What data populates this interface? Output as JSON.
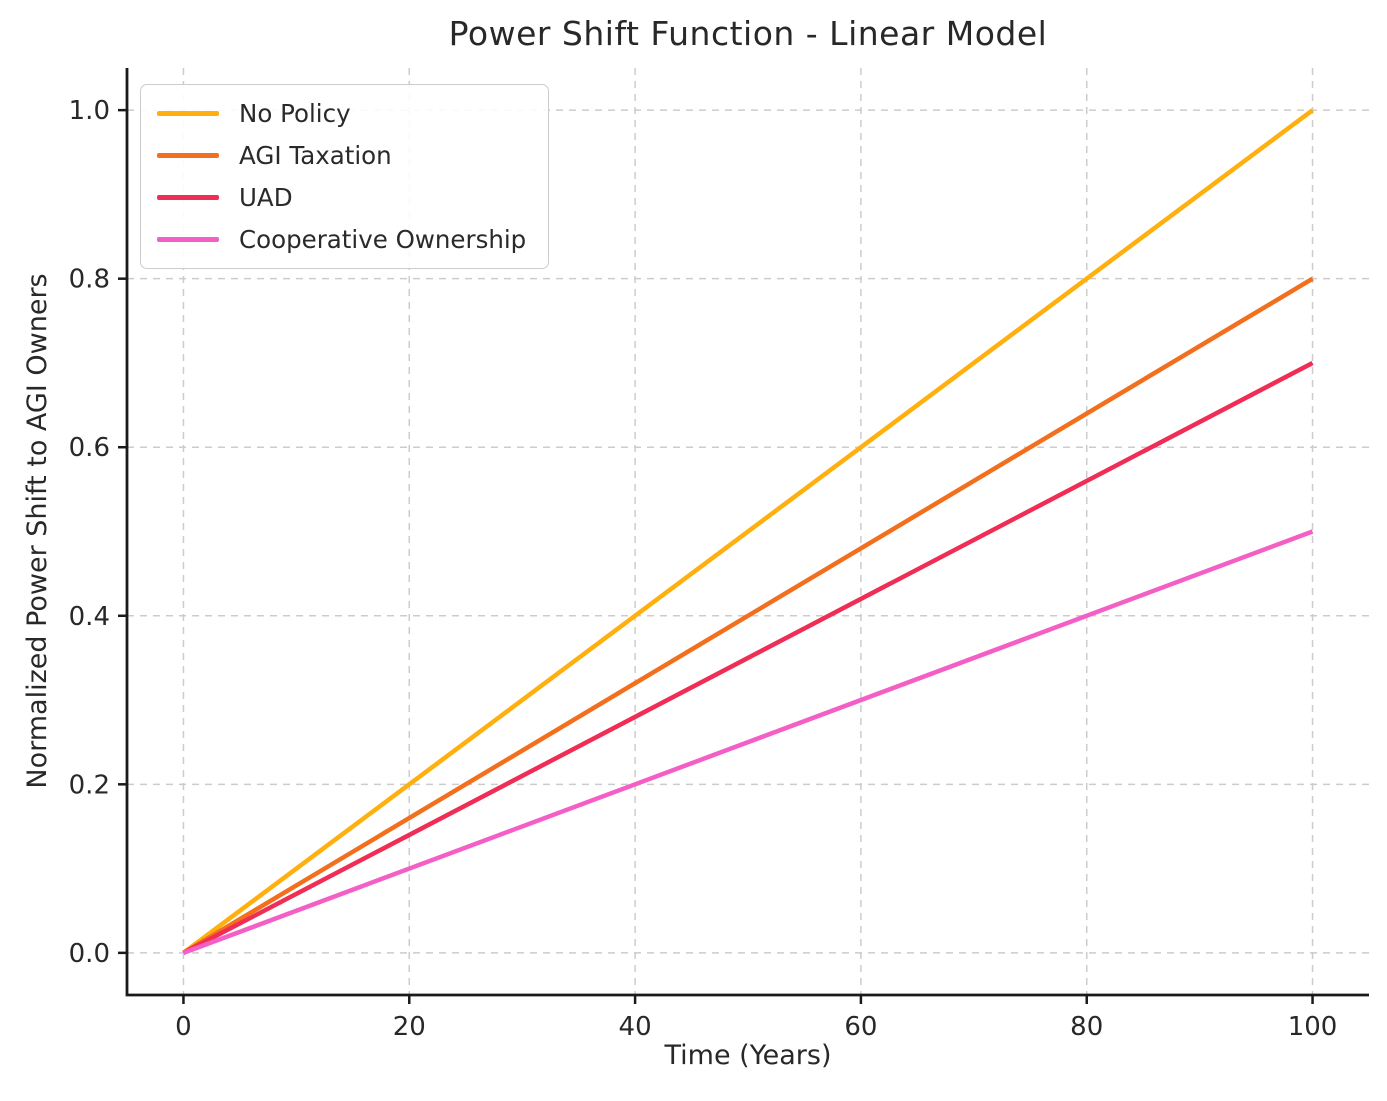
{
  "figure": {
    "title": "Power Shift Function - Linear Model",
    "xlabel": "Time (Years)",
    "ylabel": "Normalized Power Shift to AGI Owners"
  },
  "chart_data": {
    "type": "line",
    "title": "Power Shift Function - Linear Model",
    "xlabel": "Time (Years)",
    "ylabel": "Normalized Power Shift to AGI Owners",
    "x": [
      0,
      100
    ],
    "series": [
      {
        "name": "No Policy",
        "color": "#FFB00E",
        "values": [
          0.0,
          1.0
        ]
      },
      {
        "name": "AGI Taxation",
        "color": "#F2701D",
        "values": [
          0.0,
          0.8
        ]
      },
      {
        "name": "UAD",
        "color": "#EF2D55",
        "values": [
          0.0,
          0.7
        ]
      },
      {
        "name": "Cooperative Ownership",
        "color": "#F45FC6",
        "values": [
          0.0,
          0.5
        ]
      }
    ],
    "xlim": [
      -5,
      105
    ],
    "ylim": [
      -0.05,
      1.05
    ],
    "xtick_values": [
      0,
      20,
      40,
      60,
      80,
      100
    ],
    "xtick_labels": [
      "0",
      "20",
      "40",
      "60",
      "80",
      "100"
    ],
    "ytick_values": [
      0.0,
      0.2,
      0.4,
      0.6,
      0.8,
      1.0
    ],
    "ytick_labels": [
      "0.0",
      "0.2",
      "0.4",
      "0.6",
      "0.8",
      "1.0"
    ],
    "grid": true,
    "grid_style": "dashed",
    "grid_color": "#cccccc",
    "spine_color": "#1a1a1a",
    "text_color": "#282828",
    "legend_position": "upper left"
  }
}
